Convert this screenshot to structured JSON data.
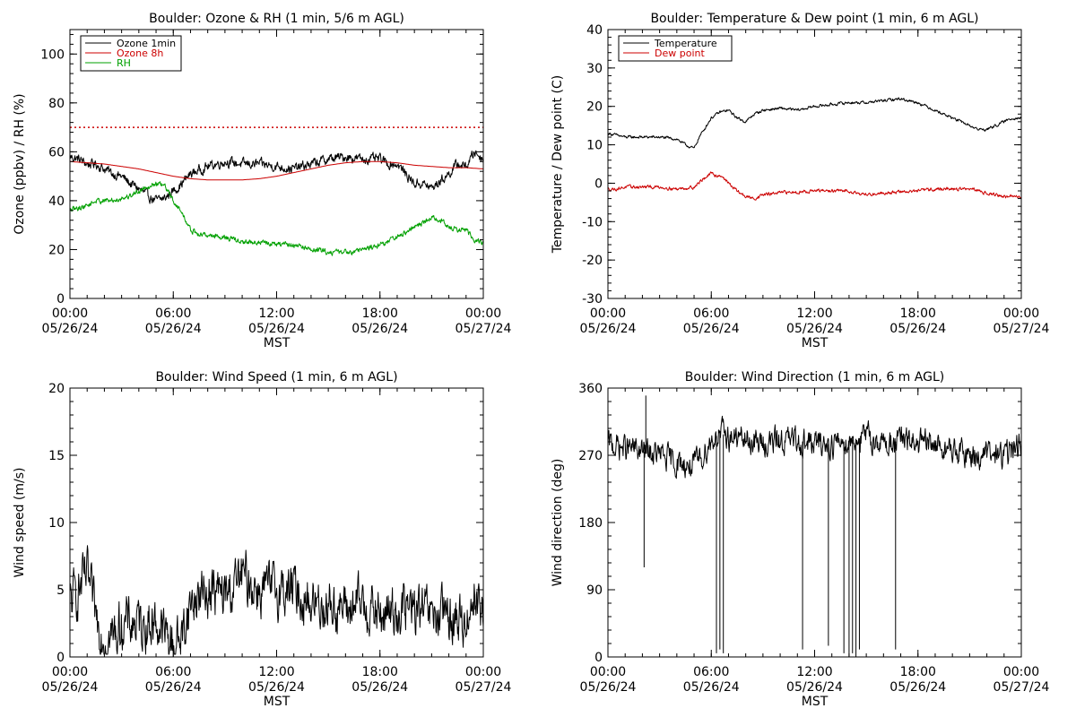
{
  "charts": [
    {
      "type": "line",
      "title": "Boulder: Ozone & RH (1 min, 5/6 m AGL)",
      "xlabel": "MST",
      "ylabel": "Ozone (ppbv) / RH (%)",
      "xlim": [
        0,
        24
      ],
      "ylim": [
        0,
        110
      ],
      "y_ticks": [
        "0",
        "20",
        "40",
        "60",
        "80",
        "100"
      ],
      "y_tick_values": [
        0,
        20,
        40,
        60,
        80,
        100
      ],
      "x_ticks": [
        {
          "time": "00:00",
          "date": "05/26/24"
        },
        {
          "time": "06:00",
          "date": "05/26/24"
        },
        {
          "time": "12:00",
          "date": "05/26/24"
        },
        {
          "time": "18:00",
          "date": "05/26/24"
        },
        {
          "time": "00:00",
          "date": "05/27/24"
        }
      ],
      "legend": [
        "Ozone 1min",
        "Ozone 8h",
        "RH"
      ],
      "legend_position": "top-left",
      "reference_line": {
        "value": 70,
        "style": "dotted",
        "color": "#cc0000"
      },
      "series": [
        {
          "name": "Ozone 1min",
          "color": "#000000",
          "noise": 1.6,
          "x": [
            0,
            0.5,
            1,
            1.5,
            2,
            2.5,
            3,
            3.5,
            4,
            4.5,
            5,
            5.5,
            6,
            6.5,
            7,
            8,
            9,
            10,
            11,
            12,
            13,
            14,
            15,
            16,
            17,
            18,
            18.5,
            19,
            19.5,
            20,
            20.5,
            21,
            21.5,
            22,
            22.5,
            23,
            23.5,
            24
          ],
          "y": [
            58,
            57,
            55,
            55,
            53,
            51,
            50,
            47,
            45,
            42,
            40,
            41,
            44,
            47,
            51,
            54,
            56,
            55,
            55,
            54,
            53,
            55,
            57,
            58,
            57,
            57,
            55,
            55,
            51,
            47,
            47,
            45,
            48,
            51,
            55,
            54,
            60,
            57
          ]
        },
        {
          "name": "Ozone 8h",
          "color": "#cc0000",
          "noise": 0,
          "x": [
            0,
            1,
            2,
            3,
            4,
            5,
            6,
            7,
            8,
            9,
            10,
            11,
            12,
            13,
            14,
            15,
            16,
            17,
            18,
            19,
            20,
            21,
            22,
            23,
            24
          ],
          "y": [
            56,
            55.5,
            55,
            54,
            53,
            51.5,
            50,
            49,
            48.5,
            48.5,
            48.5,
            49,
            50,
            51.5,
            53,
            54.5,
            55.5,
            56,
            56,
            55.5,
            54.5,
            54,
            53.5,
            53.5,
            53
          ]
        },
        {
          "name": "RH",
          "color": "#00a000",
          "noise": 0.9,
          "x": [
            0,
            0.5,
            1,
            1.5,
            2,
            2.5,
            3,
            3.5,
            4,
            4.5,
            5,
            5.5,
            6,
            6.5,
            7,
            7.5,
            8,
            9,
            10,
            11,
            12,
            13,
            14,
            15,
            16,
            17,
            18,
            19,
            19.5,
            20,
            20.5,
            21,
            21.5,
            22,
            22.5,
            23,
            23.5,
            24
          ],
          "y": [
            36,
            37,
            38,
            40,
            40,
            40,
            41,
            42,
            44,
            46,
            47,
            46,
            40,
            35,
            28,
            26,
            26,
            25,
            23,
            23,
            22,
            22,
            20,
            19,
            19,
            20,
            22,
            25,
            27,
            29,
            31,
            33,
            32,
            29,
            28,
            28,
            24,
            23
          ]
        }
      ]
    },
    {
      "type": "line",
      "title": "Boulder: Temperature & Dew point (1 min, 6 m AGL)",
      "xlabel": "MST",
      "ylabel": "Temperature / Dew point (C)",
      "xlim": [
        0,
        24
      ],
      "ylim": [
        -30,
        40
      ],
      "y_ticks": [
        "-30",
        "-20",
        "-10",
        "0",
        "10",
        "20",
        "30",
        "40"
      ],
      "y_tick_values": [
        -30,
        -20,
        -10,
        0,
        10,
        20,
        30,
        40
      ],
      "x_ticks": [
        {
          "time": "00:00",
          "date": "05/26/24"
        },
        {
          "time": "06:00",
          "date": "05/26/24"
        },
        {
          "time": "12:00",
          "date": "05/26/24"
        },
        {
          "time": "18:00",
          "date": "05/26/24"
        },
        {
          "time": "00:00",
          "date": "05/27/24"
        }
      ],
      "legend": [
        "Temperature",
        "Dew point"
      ],
      "legend_position": "top-left",
      "series": [
        {
          "name": "Temperature",
          "color": "#000000",
          "noise": 0.3,
          "x": [
            0,
            0.5,
            1,
            1.5,
            2,
            3,
            4,
            4.5,
            5,
            5.3,
            6,
            6.5,
            7,
            7.5,
            8,
            8.5,
            9,
            10,
            11,
            12,
            13,
            14,
            15,
            16,
            17,
            18,
            19,
            20,
            20.5,
            21,
            21.5,
            22,
            22.5,
            23,
            23.5,
            24
          ],
          "y": [
            13,
            12.5,
            12,
            12,
            12,
            12,
            11.5,
            10,
            9,
            12,
            17,
            18.5,
            19,
            17,
            16,
            18,
            19,
            19.5,
            19,
            20,
            20.5,
            21,
            21,
            21.5,
            22,
            21,
            19,
            17,
            16,
            15,
            14,
            14,
            15,
            16,
            17,
            17
          ]
        },
        {
          "name": "Dew point",
          "color": "#cc0000",
          "noise": 0.35,
          "x": [
            0,
            0.5,
            1,
            2,
            3,
            4,
            5,
            5.5,
            6,
            6.3,
            6.6,
            7,
            7.5,
            8,
            8.5,
            9,
            10,
            12,
            14,
            15,
            16,
            18,
            19,
            20,
            21,
            22,
            23,
            24
          ],
          "y": [
            -1.5,
            -1.5,
            -1,
            -1,
            -1,
            -1.5,
            -1,
            1,
            2.5,
            2,
            2,
            0,
            -2,
            -3.5,
            -4,
            -3,
            -2.5,
            -2,
            -2,
            -3,
            -2.5,
            -2,
            -1.5,
            -1.5,
            -1.5,
            -2.5,
            -3.5,
            -3.5
          ]
        }
      ]
    },
    {
      "type": "line",
      "title": "Boulder: Wind Speed (1 min, 6 m AGL)",
      "xlabel": "MST",
      "ylabel": "Wind speed (m/s)",
      "xlim": [
        0,
        24
      ],
      "ylim": [
        0,
        20
      ],
      "y_ticks": [
        "0",
        "5",
        "10",
        "15",
        "20"
      ],
      "y_tick_values": [
        0,
        5,
        10,
        15,
        20
      ],
      "x_ticks": [
        {
          "time": "00:00",
          "date": "05/26/24"
        },
        {
          "time": "06:00",
          "date": "05/26/24"
        },
        {
          "time": "12:00",
          "date": "05/26/24"
        },
        {
          "time": "18:00",
          "date": "05/26/24"
        },
        {
          "time": "00:00",
          "date": "05/27/24"
        }
      ],
      "series": [
        {
          "name": "",
          "color": "#000000",
          "noise": 1.5,
          "min": 0.2,
          "x": [
            0,
            0.5,
            1,
            1.5,
            2,
            2.5,
            3,
            4,
            5,
            6,
            6.5,
            7,
            8,
            9,
            10,
            11,
            12,
            13,
            14,
            15,
            16,
            17,
            18,
            19,
            20,
            21,
            22,
            23,
            23.5,
            24
          ],
          "y": [
            4,
            5,
            6,
            3,
            1.5,
            1.5,
            2.5,
            2.5,
            2.5,
            1,
            1.5,
            4,
            5,
            4.5,
            6,
            5,
            5,
            5,
            4,
            4,
            3.5,
            4,
            3,
            3.5,
            3.5,
            3,
            3,
            2.5,
            5,
            3
          ]
        }
      ]
    },
    {
      "type": "line",
      "title": "Boulder: Wind Direction (1 min, 6 m AGL)",
      "xlabel": "MST",
      "ylabel": "Wind direction (deg)",
      "xlim": [
        0,
        24
      ],
      "ylim": [
        0,
        360
      ],
      "y_ticks": [
        "0",
        "90",
        "180",
        "270",
        "360"
      ],
      "y_tick_values": [
        0,
        90,
        180,
        270,
        360
      ],
      "x_ticks": [
        {
          "time": "00:00",
          "date": "05/26/24"
        },
        {
          "time": "06:00",
          "date": "05/26/24"
        },
        {
          "time": "12:00",
          "date": "05/26/24"
        },
        {
          "time": "18:00",
          "date": "05/26/24"
        },
        {
          "time": "00:00",
          "date": "05/27/24"
        }
      ],
      "series": [
        {
          "name": "",
          "color": "#000000",
          "noise": 14,
          "min": 0,
          "max": 360,
          "x": [
            0,
            1,
            2,
            3,
            4,
            5,
            5.5,
            6,
            6.5,
            7,
            8,
            9,
            10,
            11,
            12,
            13,
            14,
            15,
            16,
            17,
            18,
            19,
            20,
            21,
            22,
            23,
            24
          ],
          "y": [
            285,
            280,
            275,
            270,
            260,
            255,
            270,
            290,
            300,
            295,
            290,
            285,
            290,
            290,
            285,
            285,
            290,
            295,
            285,
            290,
            285,
            285,
            275,
            270,
            270,
            270,
            285
          ]
        },
        {
          "name": "",
          "color": "#000000",
          "noise": 0,
          "min": 0,
          "max": 360,
          "spikes": [
            [
              2.1,
              120
            ],
            [
              2.2,
              350
            ],
            [
              6.3,
              5
            ],
            [
              6.5,
              10
            ],
            [
              6.7,
              5
            ],
            [
              11.3,
              10
            ],
            [
              12.8,
              15
            ],
            [
              13.7,
              5
            ],
            [
              14.0,
              0
            ],
            [
              14.2,
              5
            ],
            [
              14.4,
              0
            ],
            [
              14.6,
              10
            ],
            [
              16.7,
              10
            ]
          ],
          "x": [],
          "y": []
        }
      ]
    }
  ]
}
